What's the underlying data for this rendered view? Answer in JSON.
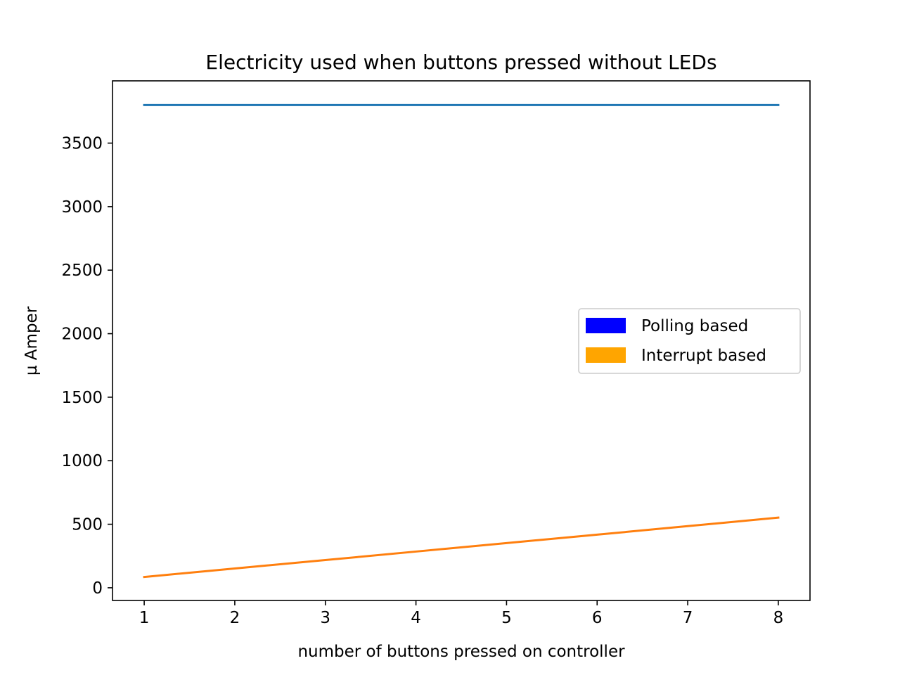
{
  "chart_data": {
    "type": "line",
    "title": "Electricity used when buttons pressed without LEDs",
    "xlabel": "number of buttons pressed on controller",
    "ylabel": "µ Amper",
    "x": [
      1,
      2,
      3,
      4,
      5,
      6,
      7,
      8
    ],
    "xlim": [
      0.65,
      8.35
    ],
    "ylim": [
      -100,
      3990
    ],
    "xticks": [
      1,
      2,
      3,
      4,
      5,
      6,
      7,
      8
    ],
    "yticks": [
      0,
      500,
      1000,
      1500,
      2000,
      2500,
      3000,
      3500
    ],
    "grid": false,
    "legend_position": "center-right",
    "series": [
      {
        "name": "Polling based",
        "values": [
          3800,
          3800,
          3800,
          3800,
          3800,
          3800,
          3800,
          3800
        ],
        "line_color": "#1f77b4",
        "legend_color": "#0000ff"
      },
      {
        "name": "Interrupt based",
        "values": [
          85,
          152,
          218,
          285,
          352,
          418,
          485,
          552
        ],
        "line_color": "#ff7f0e",
        "legend_color": "#ffa500"
      }
    ]
  }
}
